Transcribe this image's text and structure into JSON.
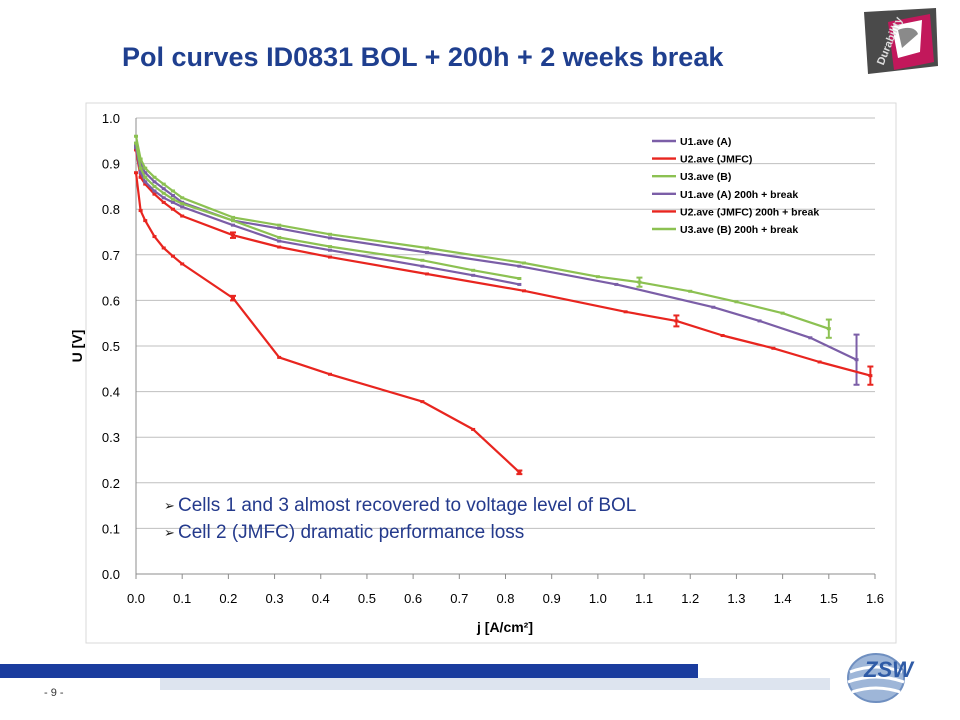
{
  "slide": {
    "title": "Pol curves ID0831 BOL + 200h + 2 weeks break",
    "page_number": "- 9 -",
    "bullets": [
      "Cells 1 and 3 almost recovered to voltage level of BOL",
      "Cell 2 (JMFC) dramatic performance loss"
    ],
    "logo_text": "ZSW",
    "badge_text": "Durability"
  },
  "chart_data": {
    "type": "line",
    "title": "",
    "xlabel": "j [A/cm²]",
    "ylabel": "U [V]",
    "xlim": [
      0.0,
      1.6
    ],
    "ylim": [
      0.0,
      1.0
    ],
    "xticks": [
      "0.0",
      "0.1",
      "0.2",
      "0.3",
      "0.4",
      "0.5",
      "0.6",
      "0.7",
      "0.8",
      "0.9",
      "1.0",
      "1.1",
      "1.2",
      "1.3",
      "1.4",
      "1.5",
      "1.6"
    ],
    "yticks": [
      "0.0",
      "0.1",
      "0.2",
      "0.3",
      "0.4",
      "0.5",
      "0.6",
      "0.7",
      "0.8",
      "0.9",
      "1.0"
    ],
    "grid": true,
    "legend_position": "top-right",
    "series": [
      {
        "name": "U1.ave (A)",
        "color": "#7b5ea7",
        "x": [
          0.0,
          0.01,
          0.02,
          0.04,
          0.06,
          0.08,
          0.1,
          0.21,
          0.31,
          0.42,
          0.63,
          0.83,
          1.04,
          1.25,
          1.35,
          1.46,
          1.56
        ],
        "y": [
          0.94,
          0.9,
          0.88,
          0.86,
          0.845,
          0.83,
          0.815,
          0.775,
          0.758,
          0.737,
          0.705,
          0.675,
          0.635,
          0.585,
          0.555,
          0.518,
          0.47
        ],
        "err": [
          0,
          0,
          0,
          0,
          0,
          0,
          0,
          0,
          0,
          0,
          0,
          0,
          0,
          0,
          0,
          0,
          0.055
        ]
      },
      {
        "name": "U2.ave (JMFC)",
        "color": "#e8251f",
        "x": [
          0.0,
          0.01,
          0.02,
          0.04,
          0.06,
          0.08,
          0.1,
          0.21,
          0.31,
          0.42,
          0.63,
          0.84,
          1.06,
          1.17,
          1.27,
          1.38,
          1.48,
          1.59
        ],
        "y": [
          0.93,
          0.87,
          0.855,
          0.833,
          0.815,
          0.8,
          0.785,
          0.743,
          0.717,
          0.695,
          0.658,
          0.621,
          0.575,
          0.555,
          0.523,
          0.495,
          0.465,
          0.435
        ],
        "err": [
          0,
          0,
          0,
          0,
          0,
          0,
          0,
          0.006,
          0,
          0,
          0,
          0,
          0,
          0.012,
          0,
          0,
          0,
          0.02
        ]
      },
      {
        "name": "U3.ave (B)",
        "color": "#8cc152",
        "x": [
          0.0,
          0.01,
          0.02,
          0.04,
          0.06,
          0.08,
          0.1,
          0.21,
          0.31,
          0.42,
          0.63,
          0.84,
          1.0,
          1.09,
          1.2,
          1.3,
          1.4,
          1.5
        ],
        "y": [
          0.96,
          0.91,
          0.89,
          0.87,
          0.855,
          0.84,
          0.825,
          0.782,
          0.765,
          0.745,
          0.715,
          0.682,
          0.652,
          0.64,
          0.62,
          0.597,
          0.572,
          0.538
        ],
        "err": [
          0,
          0,
          0,
          0,
          0,
          0,
          0,
          0,
          0,
          0,
          0,
          0,
          0,
          0.01,
          0,
          0,
          0,
          0.02
        ]
      },
      {
        "name": "U1.ave (A) 200h + break",
        "color": "#7b5ea7",
        "x": [
          0.0,
          0.01,
          0.02,
          0.04,
          0.06,
          0.08,
          0.1,
          0.21,
          0.31,
          0.42,
          0.62,
          0.73,
          0.83
        ],
        "y": [
          0.935,
          0.88,
          0.86,
          0.84,
          0.825,
          0.815,
          0.805,
          0.765,
          0.73,
          0.71,
          0.675,
          0.655,
          0.635
        ],
        "err": [
          0,
          0,
          0,
          0,
          0,
          0,
          0,
          0,
          0,
          0,
          0,
          0,
          0
        ]
      },
      {
        "name": "U2.ave (JMFC) 200h + break",
        "color": "#e8251f",
        "x": [
          0.0,
          0.01,
          0.02,
          0.04,
          0.06,
          0.08,
          0.1,
          0.21,
          0.31,
          0.42,
          0.62,
          0.73,
          0.83
        ],
        "y": [
          0.88,
          0.797,
          0.775,
          0.74,
          0.715,
          0.697,
          0.68,
          0.605,
          0.475,
          0.438,
          0.378,
          0.317,
          0.223
        ],
        "err": [
          0,
          0,
          0,
          0,
          0,
          0,
          0,
          0.005,
          0,
          0,
          0,
          0,
          0.004
        ]
      },
      {
        "name": "U3.ave (B) 200h + break",
        "color": "#8cc152",
        "x": [
          0.0,
          0.01,
          0.02,
          0.04,
          0.06,
          0.08,
          0.1,
          0.21,
          0.31,
          0.42,
          0.62,
          0.73,
          0.83
        ],
        "y": [
          0.945,
          0.89,
          0.87,
          0.85,
          0.835,
          0.822,
          0.812,
          0.775,
          0.738,
          0.718,
          0.688,
          0.666,
          0.648
        ],
        "err": [
          0,
          0,
          0,
          0,
          0,
          0,
          0,
          0,
          0,
          0,
          0,
          0,
          0
        ]
      }
    ]
  }
}
